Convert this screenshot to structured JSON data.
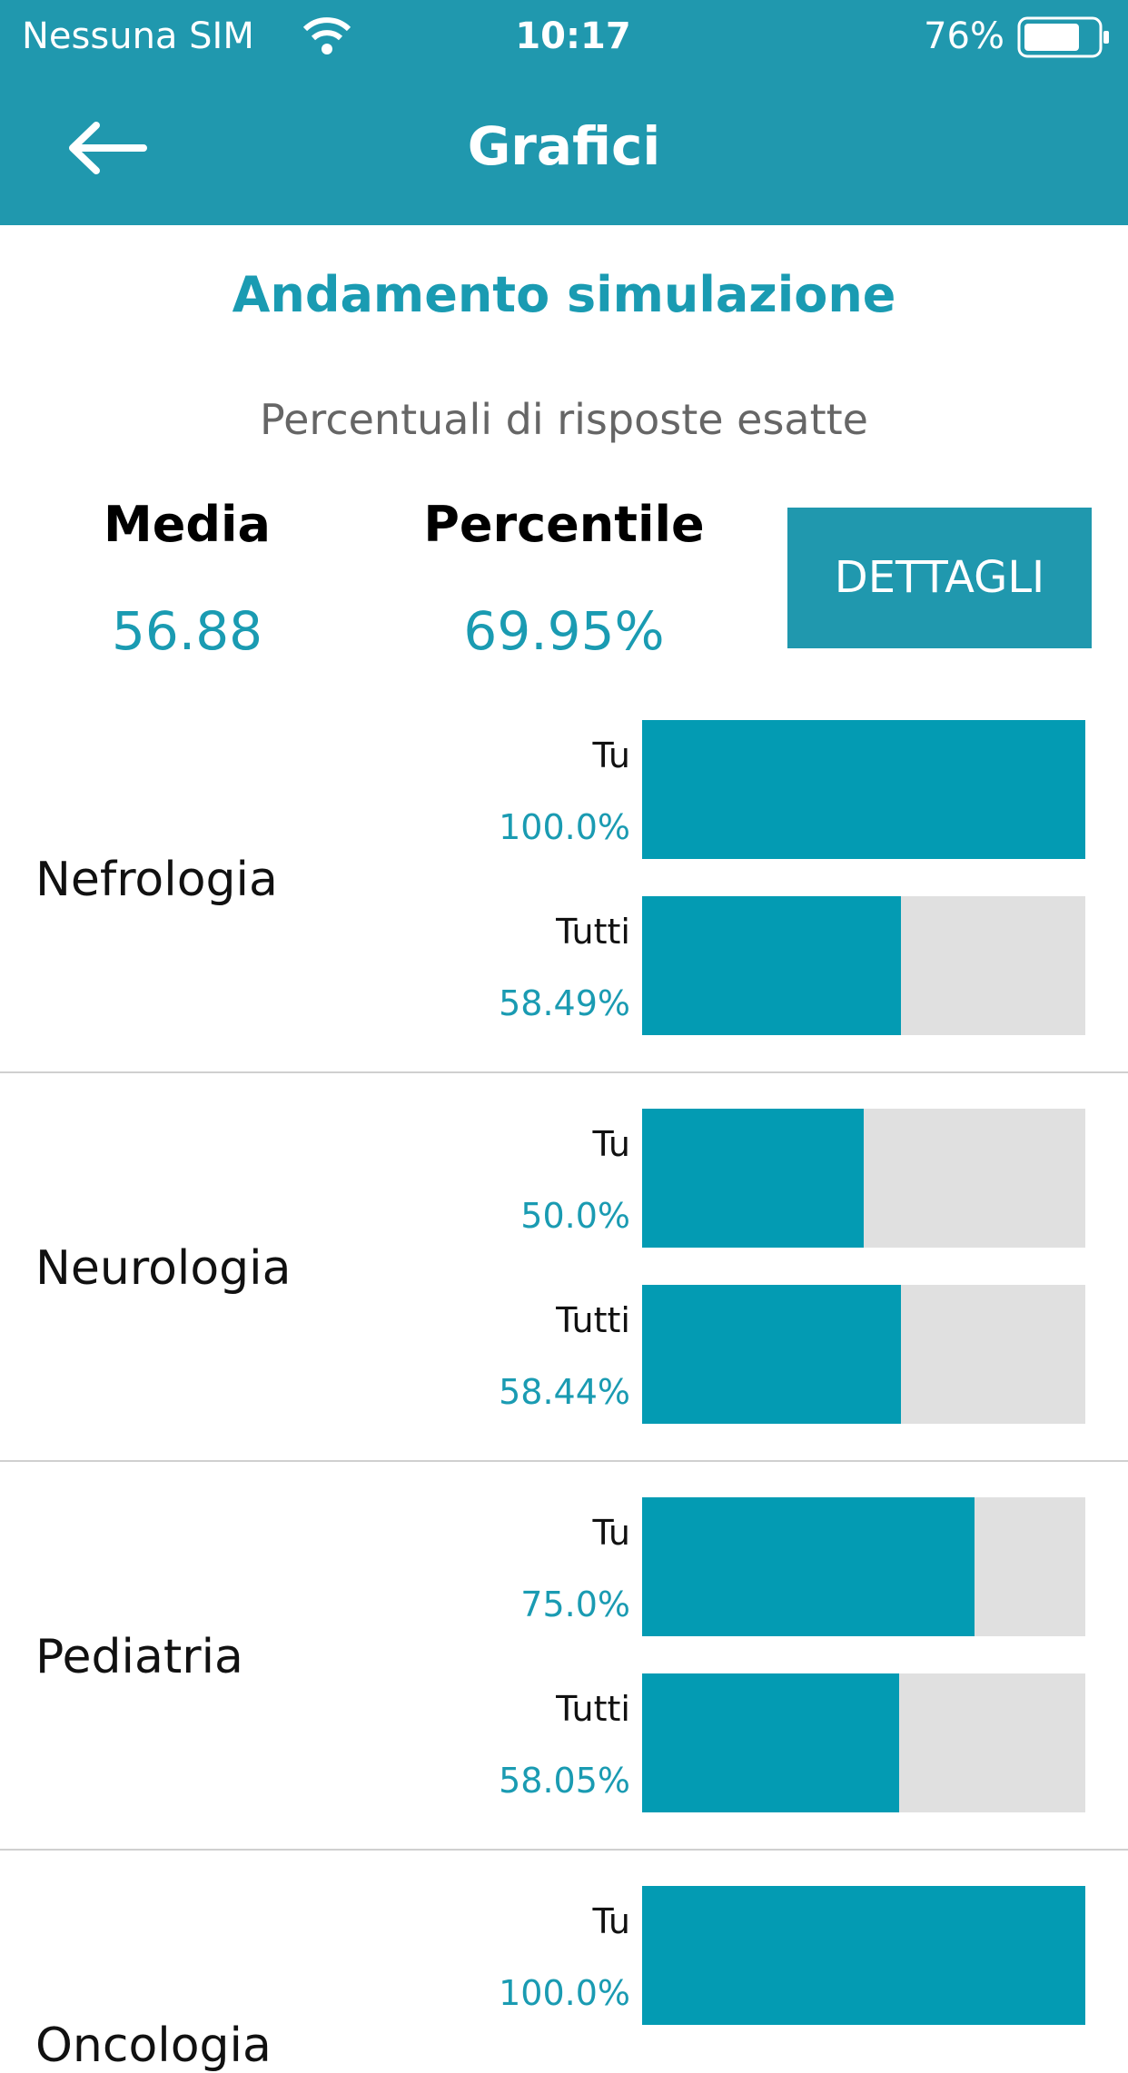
{
  "status": {
    "carrier": "Nessuna SIM",
    "time": "10:17",
    "battery": "76%"
  },
  "header": {
    "title": "Grafici"
  },
  "summary": {
    "title": "Andamento simulazione",
    "subtitle": "Percentuali di risposte esatte",
    "stats": [
      {
        "label": "Media",
        "value": "56.88"
      },
      {
        "label": "Percentile",
        "value": "69.95%"
      }
    ],
    "button": "DETTAGLI"
  },
  "chart_data": {
    "type": "bar",
    "xlim": [
      0,
      100
    ],
    "rows": [
      {
        "name": "Nefrologia",
        "bars": [
          {
            "label": "Tu",
            "value": 100.0,
            "value_label": "100.0%"
          },
          {
            "label": "Tutti",
            "value": 58.49,
            "value_label": "58.49%"
          }
        ]
      },
      {
        "name": "Neurologia",
        "bars": [
          {
            "label": "Tu",
            "value": 50.0,
            "value_label": "50.0%"
          },
          {
            "label": "Tutti",
            "value": 58.44,
            "value_label": "58.44%"
          }
        ]
      },
      {
        "name": "Pediatria",
        "bars": [
          {
            "label": "Tu",
            "value": 75.0,
            "value_label": "75.0%"
          },
          {
            "label": "Tutti",
            "value": 58.05,
            "value_label": "58.05%"
          }
        ]
      },
      {
        "name": "Oncologia",
        "bars": [
          {
            "label": "Tu",
            "value": 100.0,
            "value_label": "100.0%"
          }
        ]
      }
    ]
  }
}
